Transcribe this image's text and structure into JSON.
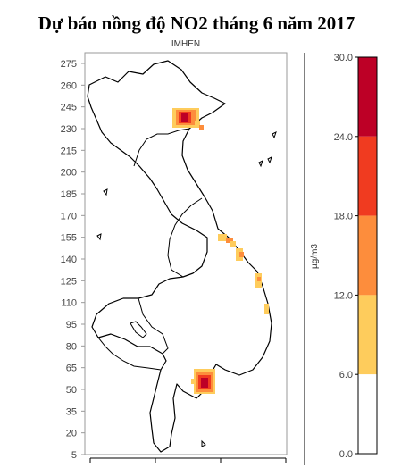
{
  "title": "Dự báo nồng độ NO2 tháng 6 năm 2017",
  "subtitle": "IMHEN",
  "y_axis": {
    "ticks": [
      "275",
      "260",
      "245",
      "230",
      "215",
      "200",
      "185",
      "170",
      "155",
      "140",
      "125",
      "110",
      "95",
      "80",
      "65",
      "50",
      "35",
      "20",
      "5"
    ]
  },
  "legend": {
    "unit_label": "µg/m3",
    "breaks": [
      "30.0",
      "24.0",
      "18.0",
      "12.0",
      "6.0",
      "0.0"
    ],
    "colors": [
      "#bd0026",
      "#f03b20",
      "#fd8d3c",
      "#fecc5c",
      "#ffffff"
    ]
  },
  "hotspots": [
    {
      "name": "hanoi",
      "level": "high"
    },
    {
      "name": "hue-danang",
      "level": "low"
    },
    {
      "name": "quang-ngai",
      "level": "low"
    },
    {
      "name": "binh-dinh",
      "level": "low"
    },
    {
      "name": "hcmc",
      "level": "high"
    }
  ]
}
